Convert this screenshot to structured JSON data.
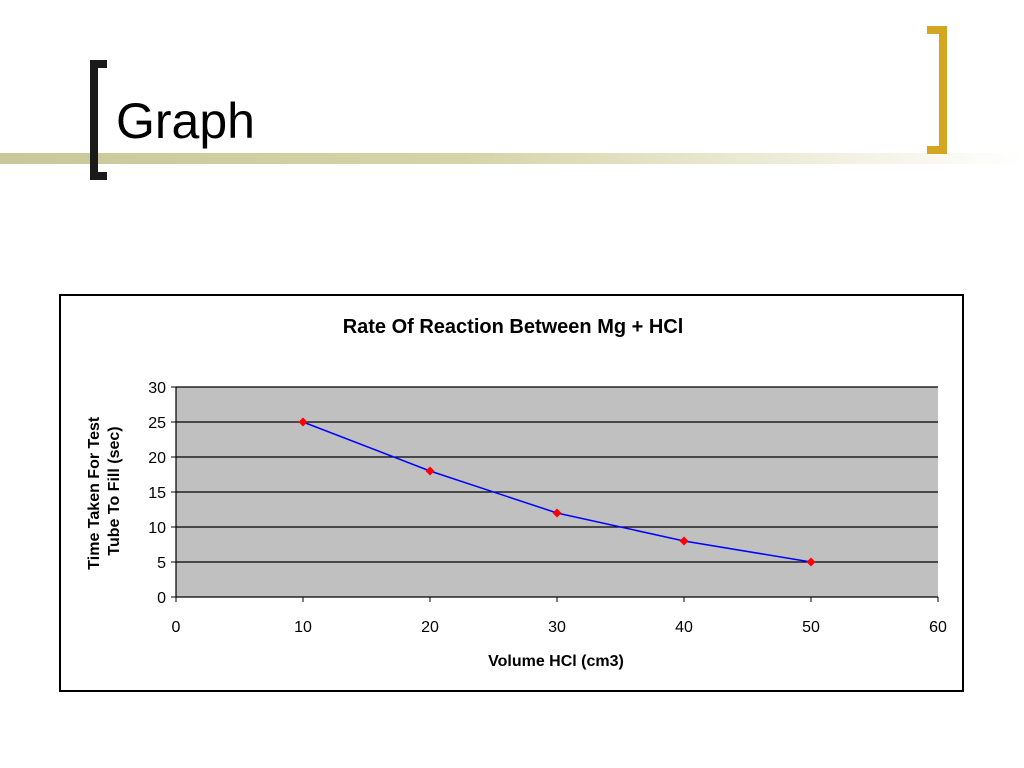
{
  "slide": {
    "title": "Graph"
  },
  "colors": {
    "title_bar": "#d4d4a8",
    "left_bracket": "#1a1a1a",
    "right_bracket": "#d4a520",
    "plot_area": "#c0c0c0",
    "series_line": "#0000ff",
    "marker": "#ff0000"
  },
  "chart_data": {
    "type": "scatter",
    "title": "Rate Of Reaction Between Mg + HCl",
    "xlabel": "Volume HCl (cm3)",
    "ylabel": "Time Taken For Test Tube To Fill (sec)",
    "ylabel_lines": [
      "Time Taken For Test",
      "Tube To Fill (sec)"
    ],
    "xlim": [
      0,
      60
    ],
    "ylim": [
      0,
      30
    ],
    "x_ticks": [
      0,
      10,
      20,
      30,
      40,
      50,
      60
    ],
    "y_ticks": [
      0,
      5,
      10,
      15,
      20,
      25,
      30
    ],
    "grid": "horizontal",
    "legend": "none",
    "series": [
      {
        "x": [
          10,
          20,
          30,
          40,
          50
        ],
        "y": [
          25,
          18,
          12,
          8,
          5
        ],
        "line": true,
        "marker": "diamond"
      }
    ]
  }
}
